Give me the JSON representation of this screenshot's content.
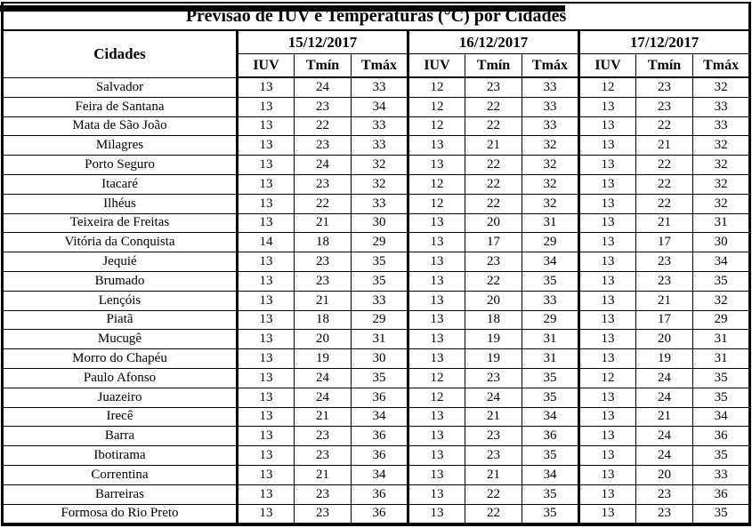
{
  "title": "Previsão de IUV e Temperaturas (°C) por Cidades",
  "colors": {
    "background": "#ffffff",
    "border": "#000000",
    "text": "#000000"
  },
  "chart_data": {
    "type": "table",
    "title": "Previsão de IUV e Temperaturas (°C) por Cidades",
    "cities_header": "Cidades",
    "dates": [
      "15/12/2017",
      "16/12/2017",
      "17/12/2017"
    ],
    "subheaders": [
      "IUV",
      "Tmín",
      "Tmáx"
    ],
    "rows": [
      {
        "city": "Salvador",
        "values": [
          13,
          24,
          33,
          12,
          23,
          33,
          12,
          23,
          32
        ]
      },
      {
        "city": "Feira de Santana",
        "values": [
          13,
          23,
          34,
          12,
          22,
          33,
          13,
          23,
          33
        ]
      },
      {
        "city": "Mata de São João",
        "values": [
          13,
          22,
          33,
          12,
          22,
          33,
          13,
          22,
          33
        ]
      },
      {
        "city": "Milagres",
        "values": [
          13,
          23,
          33,
          13,
          21,
          32,
          13,
          21,
          32
        ]
      },
      {
        "city": "Porto Seguro",
        "values": [
          13,
          24,
          32,
          13,
          22,
          32,
          13,
          22,
          32
        ]
      },
      {
        "city": "Itacaré",
        "values": [
          13,
          23,
          32,
          12,
          22,
          32,
          13,
          22,
          32
        ]
      },
      {
        "city": "Ilhéus",
        "values": [
          13,
          22,
          33,
          12,
          22,
          32,
          13,
          22,
          32
        ]
      },
      {
        "city": "Teixeira de Freitas",
        "values": [
          13,
          21,
          30,
          13,
          20,
          31,
          13,
          21,
          31
        ]
      },
      {
        "city": "Vitória da Conquista",
        "values": [
          14,
          18,
          29,
          13,
          17,
          29,
          13,
          17,
          30
        ]
      },
      {
        "city": "Jequié",
        "values": [
          13,
          23,
          35,
          13,
          23,
          34,
          13,
          23,
          34
        ]
      },
      {
        "city": "Brumado",
        "values": [
          13,
          23,
          35,
          13,
          22,
          35,
          13,
          23,
          35
        ]
      },
      {
        "city": "Lençóis",
        "values": [
          13,
          21,
          33,
          13,
          20,
          33,
          13,
          21,
          32
        ]
      },
      {
        "city": "Piatã",
        "values": [
          13,
          18,
          29,
          13,
          18,
          29,
          13,
          17,
          29
        ]
      },
      {
        "city": "Mucugê",
        "values": [
          13,
          20,
          31,
          13,
          19,
          31,
          13,
          20,
          31
        ]
      },
      {
        "city": "Morro do Chapéu",
        "values": [
          13,
          19,
          30,
          13,
          19,
          31,
          13,
          19,
          31
        ]
      },
      {
        "city": "Paulo Afonso",
        "values": [
          13,
          24,
          35,
          12,
          23,
          35,
          12,
          24,
          35
        ]
      },
      {
        "city": "Juazeiro",
        "values": [
          13,
          24,
          36,
          12,
          24,
          35,
          13,
          24,
          35
        ]
      },
      {
        "city": "Irecê",
        "values": [
          13,
          21,
          34,
          13,
          21,
          34,
          13,
          21,
          34
        ]
      },
      {
        "city": "Barra",
        "values": [
          13,
          23,
          36,
          13,
          23,
          36,
          13,
          24,
          36
        ]
      },
      {
        "city": "Ibotirama",
        "values": [
          13,
          23,
          36,
          13,
          23,
          35,
          13,
          24,
          35
        ]
      },
      {
        "city": "Correntina",
        "values": [
          13,
          21,
          34,
          13,
          21,
          34,
          13,
          20,
          33
        ]
      },
      {
        "city": "Barreiras",
        "values": [
          13,
          23,
          36,
          13,
          22,
          35,
          13,
          23,
          36
        ]
      },
      {
        "city": "Formosa do Rio Preto",
        "values": [
          13,
          23,
          36,
          13,
          22,
          35,
          13,
          23,
          35
        ]
      }
    ]
  }
}
